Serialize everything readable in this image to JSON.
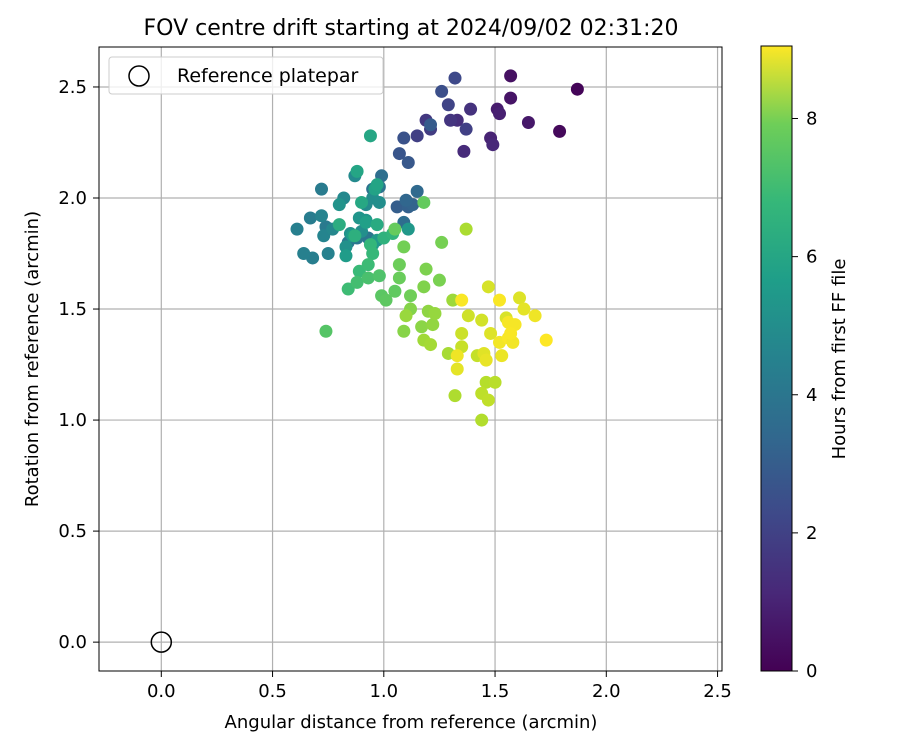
{
  "chart_data": {
    "type": "scatter",
    "title": "FOV centre drift starting at 2024/09/02 02:31:20",
    "xlabel": "Angular distance from reference (arcmin)",
    "ylabel": "Rotation from reference (arcmin)",
    "xlim": [
      -0.28,
      2.52
    ],
    "ylim": [
      -0.13,
      2.68
    ],
    "xticks": [
      "0.0",
      "0.5",
      "1.0",
      "1.5",
      "2.0",
      "2.5"
    ],
    "yticks": [
      "0.0",
      "0.5",
      "1.0",
      "1.5",
      "2.0",
      "2.5"
    ],
    "grid": true,
    "legend": {
      "position": "top-left",
      "label": "Reference platepar"
    },
    "reference_point": [
      0,
      0
    ],
    "colorbar": {
      "label": "Hours from first FF file",
      "ticks": [
        "0",
        "2",
        "4",
        "6",
        "8"
      ],
      "range": [
        0,
        9.05
      ],
      "colormap": "viridis"
    },
    "points": [
      [
        1.87,
        2.49,
        0.1
      ],
      [
        1.79,
        2.3,
        0.2
      ],
      [
        1.57,
        2.55,
        0.4
      ],
      [
        1.57,
        2.45,
        0.5
      ],
      [
        1.65,
        2.34,
        0.6
      ],
      [
        1.51,
        2.4,
        0.7
      ],
      [
        1.52,
        2.38,
        0.8
      ],
      [
        1.48,
        2.27,
        0.9
      ],
      [
        1.49,
        2.24,
        1.0
      ],
      [
        1.36,
        2.21,
        1.1
      ],
      [
        1.33,
        2.35,
        1.2
      ],
      [
        1.39,
        2.4,
        1.3
      ],
      [
        1.3,
        2.35,
        1.4
      ],
      [
        1.19,
        2.35,
        1.5
      ],
      [
        1.21,
        2.31,
        1.6
      ],
      [
        1.15,
        2.28,
        1.7
      ],
      [
        1.37,
        2.31,
        1.75
      ],
      [
        1.29,
        2.42,
        1.85
      ],
      [
        1.32,
        2.54,
        2.0
      ],
      [
        1.26,
        2.48,
        2.2
      ],
      [
        1.09,
        2.27,
        2.3
      ],
      [
        1.07,
        2.2,
        2.4
      ],
      [
        1.11,
        2.16,
        2.5
      ],
      [
        1.21,
        2.33,
        2.6
      ],
      [
        1.06,
        1.96,
        2.7
      ],
      [
        1.11,
        1.96,
        2.8
      ],
      [
        1.13,
        1.97,
        2.9
      ],
      [
        1.1,
        1.99,
        3.0
      ],
      [
        1.15,
        2.03,
        3.1
      ],
      [
        1.09,
        1.89,
        3.2
      ],
      [
        0.99,
        2.1,
        3.3
      ],
      [
        0.95,
        2.04,
        3.4
      ],
      [
        0.98,
        2.05,
        3.5
      ],
      [
        0.93,
        1.82,
        3.55
      ],
      [
        0.88,
        1.82,
        3.6
      ],
      [
        0.84,
        1.8,
        3.65
      ],
      [
        0.74,
        1.87,
        3.7
      ],
      [
        0.72,
        2.04,
        3.75
      ],
      [
        0.67,
        1.91,
        3.8
      ],
      [
        0.68,
        1.73,
        3.85
      ],
      [
        0.61,
        1.86,
        3.9
      ],
      [
        0.64,
        1.75,
        3.95
      ],
      [
        0.75,
        1.75,
        4.0
      ],
      [
        0.72,
        1.92,
        4.05
      ],
      [
        0.73,
        1.83,
        4.1
      ],
      [
        0.77,
        1.86,
        4.2
      ],
      [
        0.82,
        2.0,
        4.25
      ],
      [
        0.87,
        2.1,
        4.3
      ],
      [
        0.92,
        1.97,
        4.35
      ],
      [
        0.95,
        2.0,
        4.4
      ],
      [
        0.98,
        1.98,
        4.45
      ],
      [
        0.9,
        1.85,
        4.5
      ],
      [
        0.83,
        1.78,
        4.55
      ],
      [
        0.85,
        1.84,
        4.6
      ],
      [
        0.8,
        1.97,
        4.65
      ],
      [
        0.89,
        1.91,
        4.7
      ],
      [
        0.92,
        1.9,
        4.75
      ],
      [
        1.11,
        1.86,
        4.8
      ],
      [
        0.97,
        1.81,
        4.85
      ],
      [
        0.95,
        1.79,
        4.9
      ],
      [
        0.83,
        1.74,
        4.95
      ],
      [
        0.86,
        1.83,
        5.0
      ],
      [
        0.92,
        1.89,
        5.1
      ],
      [
        0.96,
        2.04,
        5.2
      ],
      [
        0.97,
        2.06,
        5.25
      ],
      [
        0.88,
        2.12,
        5.3
      ],
      [
        0.94,
        2.28,
        5.35
      ],
      [
        0.9,
        1.98,
        5.4
      ],
      [
        0.97,
        1.88,
        5.5
      ],
      [
        0.8,
        1.88,
        5.6
      ],
      [
        0.87,
        1.83,
        5.7
      ],
      [
        1.0,
        1.82,
        5.8
      ],
      [
        1.04,
        1.84,
        5.9
      ],
      [
        0.94,
        1.79,
        6.0
      ],
      [
        0.95,
        1.75,
        6.05
      ],
      [
        0.89,
        1.67,
        6.1
      ],
      [
        0.93,
        1.7,
        6.15
      ],
      [
        0.84,
        1.59,
        6.2
      ],
      [
        0.88,
        1.62,
        6.3
      ],
      [
        0.93,
        1.64,
        6.4
      ],
      [
        0.98,
        1.65,
        6.5
      ],
      [
        0.74,
        1.4,
        6.6
      ],
      [
        0.99,
        1.56,
        6.7
      ],
      [
        1.01,
        1.54,
        6.75
      ],
      [
        1.05,
        1.58,
        6.8
      ],
      [
        1.18,
        1.98,
        6.85
      ],
      [
        1.05,
        1.86,
        6.9
      ],
      [
        1.07,
        1.64,
        6.95
      ],
      [
        1.07,
        1.7,
        7.0
      ],
      [
        1.12,
        1.56,
        7.05
      ],
      [
        1.09,
        1.78,
        7.1
      ],
      [
        1.26,
        1.8,
        7.15
      ],
      [
        1.25,
        1.63,
        7.2
      ],
      [
        1.19,
        1.68,
        7.25
      ],
      [
        1.18,
        1.6,
        7.3
      ],
      [
        1.12,
        1.5,
        7.35
      ],
      [
        1.09,
        1.4,
        7.4
      ],
      [
        1.17,
        1.42,
        7.45
      ],
      [
        1.2,
        1.49,
        7.5
      ],
      [
        1.22,
        1.43,
        7.55
      ],
      [
        1.23,
        1.48,
        7.6
      ],
      [
        1.1,
        1.47,
        7.65
      ],
      [
        1.31,
        1.54,
        7.7
      ],
      [
        1.18,
        1.36,
        7.75
      ],
      [
        1.21,
        1.34,
        7.8
      ],
      [
        1.29,
        1.3,
        7.85
      ],
      [
        1.37,
        1.86,
        7.9
      ],
      [
        1.32,
        1.11,
        7.95
      ],
      [
        1.44,
        1.0,
        8.0
      ],
      [
        1.46,
        1.17,
        8.05
      ],
      [
        1.5,
        1.17,
        8.1
      ],
      [
        1.44,
        1.12,
        8.15
      ],
      [
        1.47,
        1.09,
        8.2
      ],
      [
        1.42,
        1.29,
        8.25
      ],
      [
        1.35,
        1.33,
        8.3
      ],
      [
        1.35,
        1.39,
        8.35
      ],
      [
        1.38,
        1.47,
        8.4
      ],
      [
        1.44,
        1.45,
        8.45
      ],
      [
        1.47,
        1.6,
        8.5
      ],
      [
        1.55,
        1.46,
        8.55
      ],
      [
        1.48,
        1.39,
        8.6
      ],
      [
        1.45,
        1.3,
        8.65
      ],
      [
        1.33,
        1.23,
        8.7
      ],
      [
        1.46,
        1.27,
        8.75
      ],
      [
        1.53,
        1.29,
        8.8
      ],
      [
        1.33,
        1.29,
        8.85
      ],
      [
        1.52,
        1.35,
        8.9
      ],
      [
        1.56,
        1.44,
        8.95
      ],
      [
        1.56,
        1.37,
        9.0
      ],
      [
        1.61,
        1.55,
        8.6
      ],
      [
        1.63,
        1.5,
        8.7
      ],
      [
        1.68,
        1.47,
        8.85
      ],
      [
        1.58,
        1.35,
        8.9
      ],
      [
        1.59,
        1.43,
        8.95
      ],
      [
        1.57,
        1.39,
        9.0
      ],
      [
        1.73,
        1.36,
        9.05
      ],
      [
        1.52,
        1.54,
        9.0
      ],
      [
        1.35,
        1.54,
        9.0
      ]
    ]
  }
}
